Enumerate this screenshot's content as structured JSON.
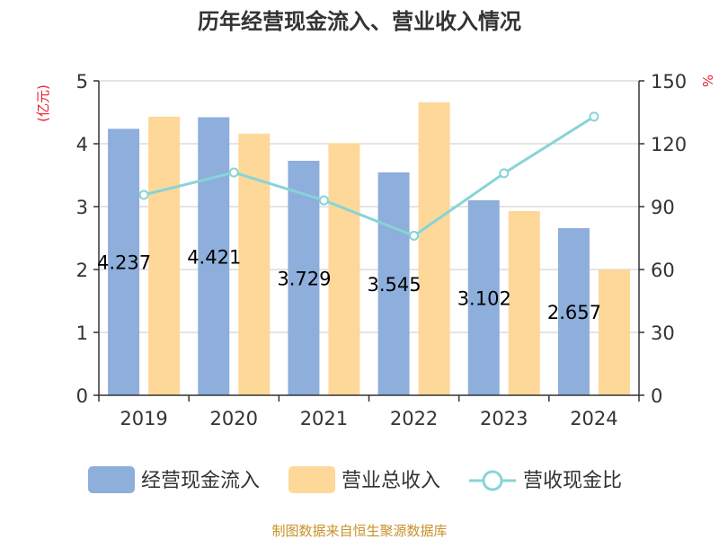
{
  "chart_data": {
    "type": "bar",
    "title": "历年经营现金流入、营业收入情况",
    "categories": [
      "2019",
      "2020",
      "2021",
      "2022",
      "2023",
      "2024"
    ],
    "series": [
      {
        "name": "经营现金流入",
        "axis": "left",
        "kind": "bar",
        "color": "#8eaedb",
        "values": [
          4.237,
          4.421,
          3.729,
          3.545,
          3.102,
          2.657
        ],
        "labels": [
          "4.237",
          "4.421",
          "3.729",
          "3.545",
          "3.102",
          "2.657"
        ]
      },
      {
        "name": "营业总收入",
        "axis": "left",
        "kind": "bar",
        "color": "#fdd898",
        "values": [
          4.43,
          4.16,
          4.01,
          4.66,
          2.93,
          2.0
        ]
      },
      {
        "name": "营收现金比",
        "axis": "right",
        "kind": "line",
        "color": "#86d4d8",
        "values": [
          95.6,
          106.3,
          93.0,
          76.1,
          105.9,
          132.9
        ]
      }
    ],
    "y_left": {
      "unit": "(亿元)",
      "min": 0,
      "max": 5,
      "ticks": [
        "0",
        "1",
        "2",
        "3",
        "4",
        "5"
      ]
    },
    "y_right": {
      "unit": "%",
      "min": 0,
      "max": 150,
      "ticks": [
        "0",
        "30",
        "60",
        "90",
        "120",
        "150"
      ]
    },
    "grid": true,
    "legend": "bottom"
  },
  "source_note": "制图数据来自恒生聚源数据库"
}
